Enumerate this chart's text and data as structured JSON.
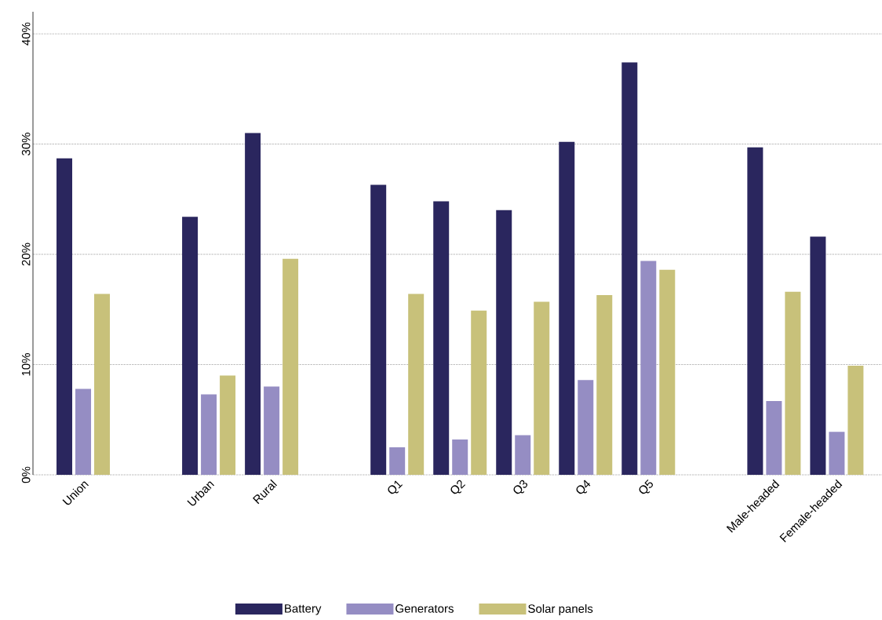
{
  "chart_data": {
    "type": "bar",
    "categories": [
      "Union",
      null,
      "Urban",
      "Rural",
      null,
      "Q1",
      "Q2",
      "Q3",
      "Q4",
      "Q5",
      null,
      "Male-headed",
      "Female-headed"
    ],
    "series": [
      {
        "name": "Battery",
        "color": "#2a265e",
        "values": [
          28.7,
          null,
          23.4,
          31.0,
          null,
          26.3,
          24.8,
          24.0,
          30.2,
          37.4,
          null,
          29.7,
          21.6
        ]
      },
      {
        "name": "Generators",
        "color": "#958dc3",
        "values": [
          7.8,
          null,
          7.3,
          8.0,
          null,
          2.5,
          3.2,
          3.6,
          8.6,
          19.4,
          null,
          6.7,
          3.9
        ]
      },
      {
        "name": "Solar panels",
        "color": "#c8c17a",
        "values": [
          16.4,
          null,
          9.0,
          19.6,
          null,
          16.4,
          14.9,
          15.7,
          16.3,
          18.6,
          null,
          16.6,
          9.9
        ]
      }
    ],
    "ylim": [
      0,
      42
    ],
    "yticks": [
      {
        "value": 0,
        "label": "0%"
      },
      {
        "value": 10,
        "label": "10%"
      },
      {
        "value": 20,
        "label": "20%"
      },
      {
        "value": 30,
        "label": "30%"
      },
      {
        "value": 40,
        "label": "40%"
      }
    ],
    "grid": "y",
    "legend": "bottom"
  }
}
